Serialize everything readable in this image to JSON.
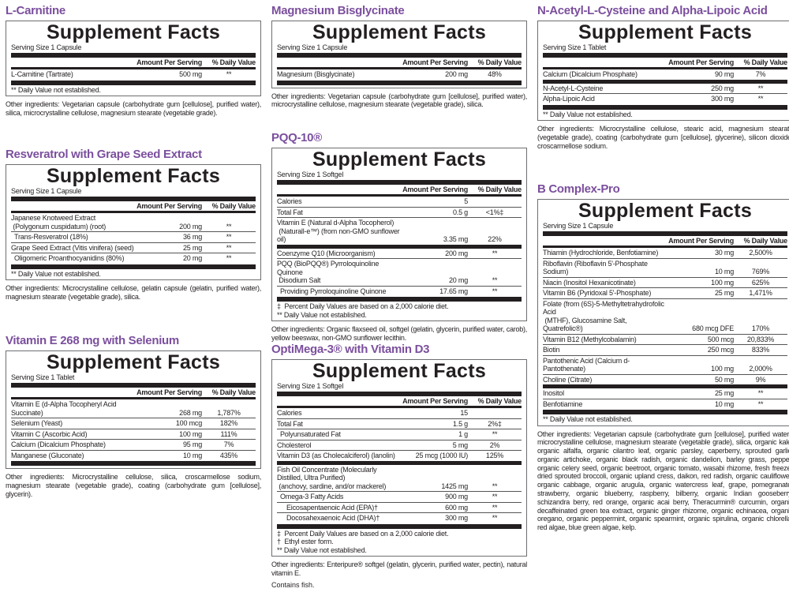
{
  "facts_heading": "Supplement Facts",
  "header": {
    "amount": "Amount Per Serving",
    "dv": "% Daily Value"
  },
  "colors": {
    "title": "#7b4f9d",
    "rule": "#231f20"
  },
  "panels": [
    {
      "id": "l-carnitine",
      "title": "L-Carnitine",
      "serving": "Serving Size 1 Capsule",
      "rows": [
        {
          "name": "L-Carnitine (Tartrate)",
          "amount": "500 mg",
          "dv": "**"
        }
      ],
      "footnotes": [
        "** Daily Value not established."
      ],
      "other": "Other ingredients: Vegetarian capsule (carbohydrate gum [cellulose], purified water), silica, microcrystalline cellulose, magnesium stearate (vegetable grade)."
    },
    {
      "id": "resveratrol",
      "title": "Resveratrol with Grape Seed Extract",
      "serving": "Serving Size 1 Capsule",
      "rows": [
        {
          "name": "Japanese Knotweed Extract\n (Polygonum cuspidatum) (root)",
          "amount": "200 mg",
          "dv": "**"
        },
        {
          "name": "Trans-Resveratrol (18%)",
          "amount": "36 mg",
          "dv": "**",
          "indent": 1
        },
        {
          "name": "Grape Seed Extract (Vitis vinifera) (seed)",
          "amount": "25 mg",
          "dv": "**"
        },
        {
          "name": "Oligomeric Proanthocyanidins (80%)",
          "amount": "20 mg",
          "dv": "**",
          "indent": 1
        }
      ],
      "footnotes": [
        "** Daily Value not established."
      ],
      "other": "Other ingredients: Microcrystalline cellulose, gelatin capsule (gelatin, purified water), magnesium stearate (vegetable grade), silica."
    },
    {
      "id": "vitamin-e",
      "title": "Vitamin E 268 mg with Selenium",
      "serving": "Serving Size 1 Tablet",
      "rows": [
        {
          "name": "Vitamin E (d-Alpha Tocopheryl Acid Succinate)",
          "amount": "268 mg",
          "dv": "1,787%"
        },
        {
          "name": "Selenium (Yeast)",
          "amount": "100 mcg",
          "dv": "182%"
        },
        {
          "name": "Vitamin C (Ascorbic Acid)",
          "amount": "100 mg",
          "dv": "111%"
        },
        {
          "name": "Calcium (Dicalcium Phosphate)",
          "amount": "95 mg",
          "dv": "7%"
        },
        {
          "name": "Manganese (Gluconate)",
          "amount": "10 mg",
          "dv": "435%"
        }
      ],
      "footnotes": [],
      "other": "Other ingredients: Microcrystalline cellulose, silica, croscarmellose sodium, magnesium stearate (vegetable grade), coating (carbohydrate gum [cellulose], glycerin)."
    },
    {
      "id": "magnesium",
      "title": "Magnesium Bisglycinate",
      "serving": "Serving Size 1 Capsule",
      "rows": [
        {
          "name": "Magnesium (Bisglycinate)",
          "amount": "200 mg",
          "dv": "48%"
        }
      ],
      "footnotes": [],
      "other": "Other ingredients: Vegetarian capsule (carbohydrate gum [cellulose], purified water), microcrystalline cellulose, magnesium stearate (vegetable grade), silica."
    },
    {
      "id": "pqq",
      "title": "PQQ-10®",
      "serving": "Serving Size 1 Softgel",
      "rows": [
        {
          "name": "Calories",
          "amount": "5",
          "dv": ""
        },
        {
          "name": "Total Fat",
          "amount": "0.5 g",
          "dv": "<1%‡"
        },
        {
          "name": "Vitamin E (Natural d-Alpha Tocopherol)\n (Naturall-e™) (from non-GMO sunflower oil)",
          "amount": "3.35 mg",
          "dv": "22%"
        },
        {
          "name": "Coenzyme Q10 (Microorganism)",
          "amount": "200 mg",
          "dv": "**",
          "sep": "thick"
        },
        {
          "name": "PQQ (BioPQQ®) Pyrroloquinoline Quinone\n Disodium Salt",
          "amount": "20 mg",
          "dv": "**"
        },
        {
          "name": "Providing Pyrroloquinoline Quinone",
          "amount": "17.65 mg",
          "dv": "**",
          "indent": 1
        }
      ],
      "footnotes": [
        "‡  Percent Daily Values are based on a 2,000 calorie diet.",
        "** Daily Value not established."
      ],
      "other": "Other ingredients: Organic flaxseed oil, softgel (gelatin, glycerin, purified water, carob), yellow beeswax, non-GMO sunflower lecithin."
    },
    {
      "id": "optimega",
      "title": "OptiMega-3® with Vitamin D3",
      "serving": "Serving Size 1 Softgel",
      "rows": [
        {
          "name": "Calories",
          "amount": "15",
          "dv": ""
        },
        {
          "name": "Total Fat",
          "amount": "1.5 g",
          "dv": "2%‡"
        },
        {
          "name": "Polyunsaturated Fat",
          "amount": "1 g",
          "dv": "**",
          "indent": 1
        },
        {
          "name": "Cholesterol",
          "amount": "5 mg",
          "dv": "2%"
        },
        {
          "name": "Vitamin D3 (as Cholecalciferol) (lanolin)",
          "amount": "25 mcg (1000 IU)",
          "dv": "125%"
        },
        {
          "name": "Fish Oil Concentrate (Molecularly Distilled, Ultra Purified)\n (anchovy, sardine, and/or mackerel)",
          "amount": "1425 mg",
          "dv": "**",
          "sep": "thick"
        },
        {
          "name": "Omega-3 Fatty Acids",
          "amount": "900 mg",
          "dv": "**",
          "indent": 1
        },
        {
          "name": "Eicosapentaenoic Acid (EPA)†",
          "amount": "600 mg",
          "dv": "**",
          "indent": 2
        },
        {
          "name": "Docosahexaenoic Acid (DHA)†",
          "amount": "300 mg",
          "dv": "**",
          "indent": 2
        }
      ],
      "footnotes": [
        "‡  Percent Daily Values are based on a 2,000 calorie diet.",
        "†  Ethyl ester form.",
        "** Daily Value not established."
      ],
      "other": "Other ingredients: Enteripure® softgel (gelatin, glycerin, purified water, pectin), natural vitamin E.",
      "extra": "Contains fish."
    },
    {
      "id": "nac",
      "title": "N-Acetyl-L-Cysteine and Alpha-Lipoic Acid",
      "serving": "Serving Size 1 Tablet",
      "rows": [
        {
          "name": "Calcium (Dicalcium Phosphate)",
          "amount": "90 mg",
          "dv": "7%"
        },
        {
          "name": "N-Acetyl-L-Cysteine",
          "amount": "250 mg",
          "dv": "**",
          "sep": "thick"
        },
        {
          "name": "Alpha-Lipoic Acid",
          "amount": "300 mg",
          "dv": "**"
        }
      ],
      "footnotes": [
        "** Daily Value not established."
      ],
      "other": "Other ingredients: Microcrystalline cellulose, stearic acid, magnesium stearate (vegetable grade), coating (carbohydrate gum [cellulose], glycerine), silicon dioxide, croscarmellose sodium."
    },
    {
      "id": "b-complex",
      "title": "B Complex-Pro",
      "serving": "Serving Size 1 Capsule",
      "rows": [
        {
          "name": "Thiamin (Hydrochloride, Benfotiamine)",
          "amount": "30 mg",
          "dv": "2,500%"
        },
        {
          "name": "Riboflavin (Riboflavin 5'-Phosphate Sodium)",
          "amount": "10 mg",
          "dv": "769%"
        },
        {
          "name": "Niacin (Inositol Hexanicotinate)",
          "amount": "100 mg",
          "dv": "625%"
        },
        {
          "name": "Vitamin B6 (Pyridoxal 5'-Phosphate)",
          "amount": "25 mg",
          "dv": "1,471%"
        },
        {
          "name": "Folate (from (6S)-5-Methyltetrahydrofolic Acid\n (MTHF), Glucosamine Salt, Quatrefolic®)",
          "amount": "680 mcg DFE",
          "dv": "170%"
        },
        {
          "name": "Vitamin B12 (Methylcobalamin)",
          "amount": "500 mcg",
          "dv": "20,833%"
        },
        {
          "name": "Biotin",
          "amount": "250 mcg",
          "dv": "833%"
        },
        {
          "name": "Pantothenic Acid (Calcium d-Pantothenate)",
          "amount": "100 mg",
          "dv": "2,000%"
        },
        {
          "name": "Choline (Citrate)",
          "amount": "50 mg",
          "dv": "9%"
        },
        {
          "name": "Inositol",
          "amount": "25 mg",
          "dv": "**",
          "sep": "thick"
        },
        {
          "name": "Benfotiamine",
          "amount": "10 mg",
          "dv": "**"
        }
      ],
      "footnotes": [
        "** Daily Value not established."
      ],
      "other": "Other ingredients: Vegetarian capsule (carbohydrate gum [cellulose], purified water), microcrystalline cellulose, magnesium stearate (vegetable grade), silica, organic kale, organic alfalfa, organic cilantro leaf, organic parsley, caperberry, sprouted garlic, organic artichoke, organic black radish, organic dandelion, barley grass, pepper, organic celery seed, organic beetroot, organic tomato, wasabi rhizome, fresh freeze-dried sprouted broccoli, organic upland cress, daikon, red radish, organic cauliflower, organic cabbage, organic arugula, organic watercress leaf, grape, pomegranate, strawberry, organic blueberry, raspberry, bilberry, organic Indian gooseberry, schizandra berry, red orange, organic acai berry, Theracurmin® curcumin, organic decaffeinated green tea extract, organic ginger rhizome, organic echinacea, organic oregano, organic peppermint, organic spearmint, organic spirulina, organic chlorella, red algae, blue green algae, kelp."
    }
  ]
}
